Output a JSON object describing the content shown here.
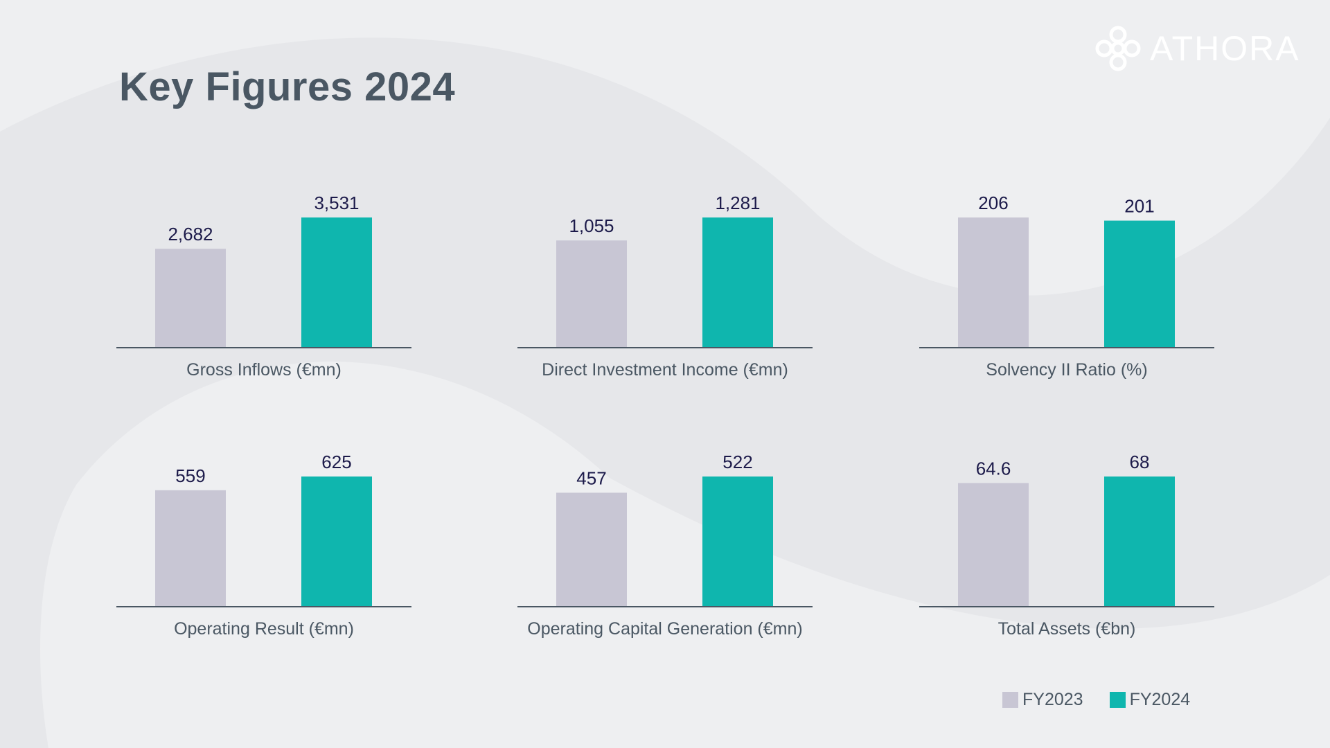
{
  "page": {
    "title": "Key Figures 2024",
    "logo_text": "ATHORA"
  },
  "colors": {
    "fy2023": "#c8c6d4",
    "fy2024": "#0fb6ae",
    "title": "#4a5763",
    "value_label": "#1c1a4a",
    "axis": "#4a5763"
  },
  "legend": [
    {
      "label": "FY2023",
      "color": "#c8c6d4"
    },
    {
      "label": "FY2024",
      "color": "#0fb6ae"
    }
  ],
  "chart_data": [
    {
      "type": "bar",
      "title": "Gross Inflows (€mn)",
      "categories": [
        "FY2023",
        "FY2024"
      ],
      "values": [
        2682,
        3531
      ],
      "labels": [
        "2,682",
        "3,531"
      ],
      "ylim": [
        0,
        3531
      ]
    },
    {
      "type": "bar",
      "title": "Direct Investment Income (€mn)",
      "categories": [
        "FY2023",
        "FY2024"
      ],
      "values": [
        1055,
        1281
      ],
      "labels": [
        "1,055",
        "1,281"
      ],
      "ylim": [
        0,
        1281
      ]
    },
    {
      "type": "bar",
      "title": "Solvency II Ratio (%)",
      "categories": [
        "FY2023",
        "FY2024"
      ],
      "values": [
        206,
        201
      ],
      "labels": [
        "206",
        "201"
      ],
      "ylim": [
        0,
        206
      ]
    },
    {
      "type": "bar",
      "title": "Operating Result (€mn)",
      "categories": [
        "FY2023",
        "FY2024"
      ],
      "values": [
        559,
        625
      ],
      "labels": [
        "559",
        "625"
      ],
      "ylim": [
        0,
        625
      ]
    },
    {
      "type": "bar",
      "title": "Operating Capital Generation (€mn)",
      "categories": [
        "FY2023",
        "FY2024"
      ],
      "values": [
        457,
        522
      ],
      "labels": [
        "457",
        "522"
      ],
      "ylim": [
        0,
        522
      ]
    },
    {
      "type": "bar",
      "title": "Total Assets (€bn)",
      "categories": [
        "FY2023",
        "FY2024"
      ],
      "values": [
        64.6,
        68
      ],
      "labels": [
        "64.6",
        "68"
      ],
      "ylim": [
        0,
        68
      ]
    }
  ]
}
